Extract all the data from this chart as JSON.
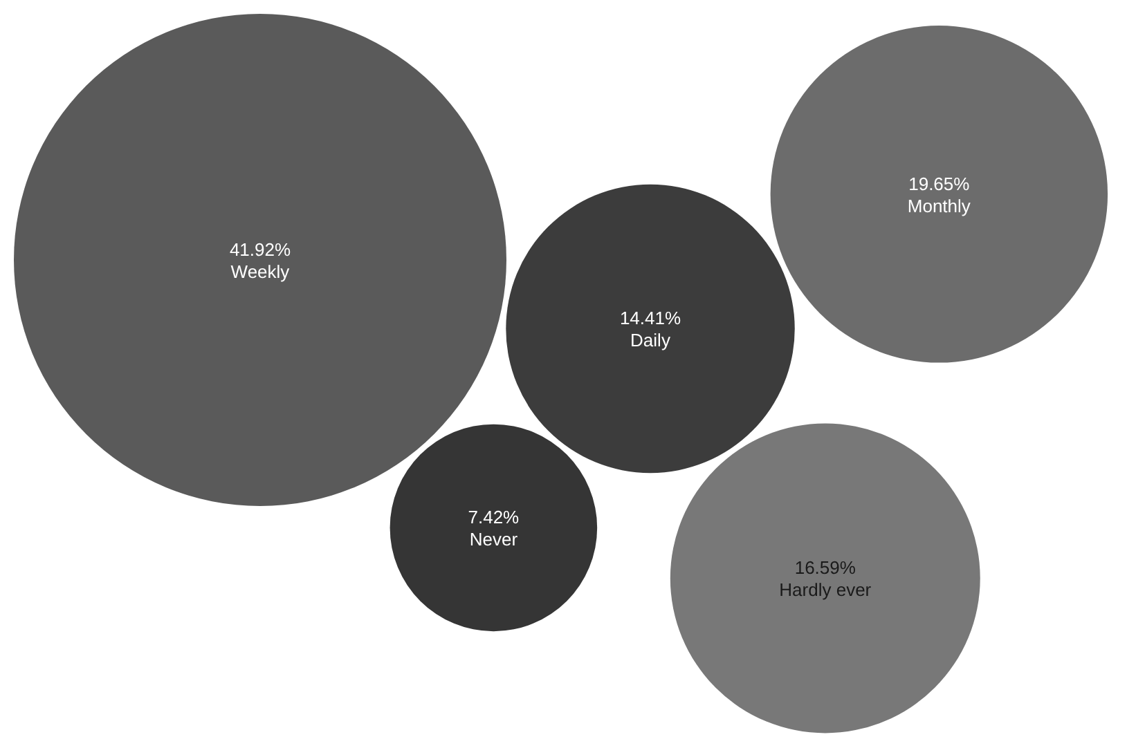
{
  "chart_data": {
    "type": "other",
    "categories": [
      "Weekly",
      "Daily",
      "Hardly ever",
      "Never",
      "Monthly"
    ],
    "values": [
      41.92,
      14.41,
      16.59,
      7.42,
      19.65
    ],
    "value_labels": [
      "41.92%",
      "14.41%",
      "16.59%",
      "7.42%",
      "19.65%"
    ],
    "colors": [
      "#5a5a5a",
      "#3c3c3c",
      "#787878",
      "#353535",
      "#6c6c6c"
    ]
  }
}
